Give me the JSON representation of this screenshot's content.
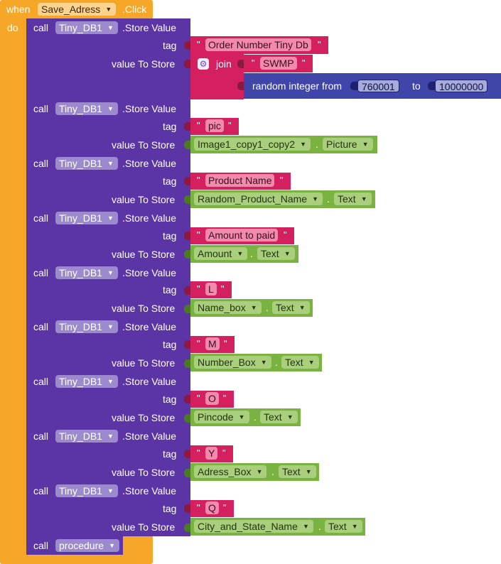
{
  "event": {
    "when_label": "when",
    "do_label": "do",
    "component": "Save_Adress",
    "event_name": ".Click"
  },
  "store_blocks": [
    {
      "call": "call",
      "db": "Tiny_DB1",
      "method": ".Store Value",
      "tag_label": "tag",
      "value_label": "value To Store",
      "tag": "Order Number Tiny Db"
    },
    {
      "call": "call",
      "db": "Tiny_DB1",
      "method": ".Store Value",
      "tag_label": "tag",
      "value_label": "value To Store",
      "tag": "pic",
      "component": "Image1_copy1_copy2",
      "property": "Picture"
    },
    {
      "call": "call",
      "db": "Tiny_DB1",
      "method": ".Store Value",
      "tag_label": "tag",
      "value_label": "value To Store",
      "tag": "Product Name",
      "component": "Random_Product_Name",
      "property": "Text"
    },
    {
      "call": "call",
      "db": "Tiny_DB1",
      "method": ".Store Value",
      "tag_label": "tag",
      "value_label": "value To Store",
      "tag": "Amount to paid",
      "component": "Amount",
      "property": "Text"
    },
    {
      "call": "call",
      "db": "Tiny_DB1",
      "method": ".Store Value",
      "tag_label": "tag",
      "value_label": "value To Store",
      "tag": "L",
      "component": "Name_box",
      "property": "Text"
    },
    {
      "call": "call",
      "db": "Tiny_DB1",
      "method": ".Store Value",
      "tag_label": "tag",
      "value_label": "value To Store",
      "tag": "M",
      "component": "Number_Box",
      "property": "Text"
    },
    {
      "call": "call",
      "db": "Tiny_DB1",
      "method": ".Store Value",
      "tag_label": "tag",
      "value_label": "value To Store",
      "tag": "O",
      "component": "Pincode",
      "property": "Text"
    },
    {
      "call": "call",
      "db": "Tiny_DB1",
      "method": ".Store Value",
      "tag_label": "tag",
      "value_label": "value To Store",
      "tag": "Y",
      "component": "Adress_Box",
      "property": "Text"
    },
    {
      "call": "call",
      "db": "Tiny_DB1",
      "method": ".Store Value",
      "tag_label": "tag",
      "value_label": "value To Store",
      "tag": "Q",
      "component": "City_and_State_Name",
      "property": "Text"
    }
  ],
  "join_block": {
    "label": "join",
    "first": "SWMP",
    "random_label": "random integer from",
    "from": "760001",
    "to_label": "to",
    "to": "10000000"
  },
  "procedure_call": {
    "call": "call",
    "name": "procedure"
  },
  "colors": {
    "event": "#F7A727",
    "component_call": "#5B34A6",
    "text": "#D52060",
    "property_getter": "#7BB342",
    "math": "#3F45A9"
  }
}
